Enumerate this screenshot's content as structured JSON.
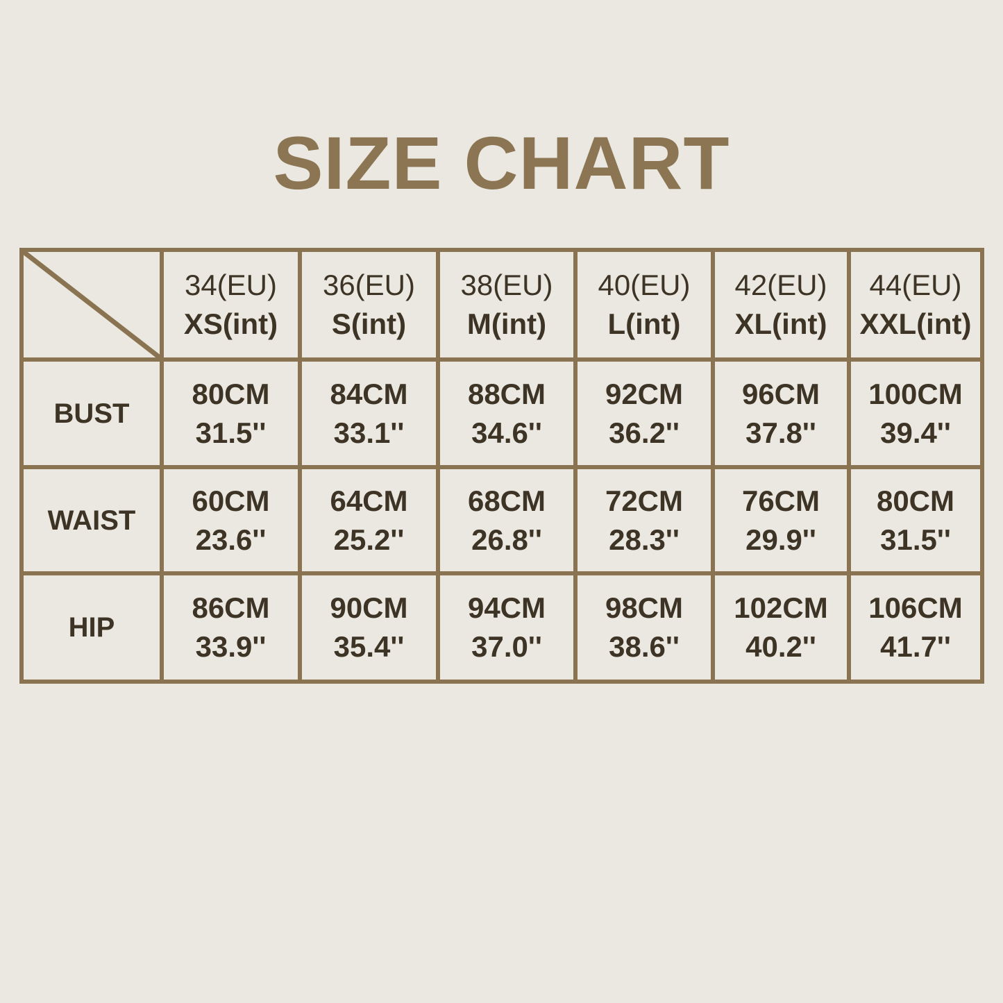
{
  "title": "SIZE CHART",
  "colors": {
    "background": "#ebe8e1",
    "border": "#8a7350",
    "title": "#8b7552",
    "text": "#3d3426"
  },
  "chart_data": {
    "type": "table",
    "title": "SIZE CHART",
    "columns": [
      {
        "eu": "34(EU)",
        "int": "XS(int)"
      },
      {
        "eu": "36(EU)",
        "int": "S(int)"
      },
      {
        "eu": "38(EU)",
        "int": "M(int)"
      },
      {
        "eu": "40(EU)",
        "int": "L(int)"
      },
      {
        "eu": "42(EU)",
        "int": "XL(int)"
      },
      {
        "eu": "44(EU)",
        "int": "XXL(int)"
      }
    ],
    "rows": [
      {
        "label": "BUST",
        "cells": [
          {
            "cm": "80CM",
            "in": "31.5''"
          },
          {
            "cm": "84CM",
            "in": "33.1''"
          },
          {
            "cm": "88CM",
            "in": "34.6''"
          },
          {
            "cm": "92CM",
            "in": "36.2''"
          },
          {
            "cm": "96CM",
            "in": "37.8''"
          },
          {
            "cm": "100CM",
            "in": "39.4''"
          }
        ]
      },
      {
        "label": "WAIST",
        "cells": [
          {
            "cm": "60CM",
            "in": "23.6''"
          },
          {
            "cm": "64CM",
            "in": "25.2''"
          },
          {
            "cm": "68CM",
            "in": "26.8''"
          },
          {
            "cm": "72CM",
            "in": "28.3''"
          },
          {
            "cm": "76CM",
            "in": "29.9''"
          },
          {
            "cm": "80CM",
            "in": "31.5''"
          }
        ]
      },
      {
        "label": "HIP",
        "cells": [
          {
            "cm": "86CM",
            "in": "33.9''"
          },
          {
            "cm": "90CM",
            "in": "35.4''"
          },
          {
            "cm": "94CM",
            "in": "37.0''"
          },
          {
            "cm": "98CM",
            "in": "38.6''"
          },
          {
            "cm": "102CM",
            "in": "40.2''"
          },
          {
            "cm": "106CM",
            "in": "41.7''"
          }
        ]
      }
    ]
  }
}
